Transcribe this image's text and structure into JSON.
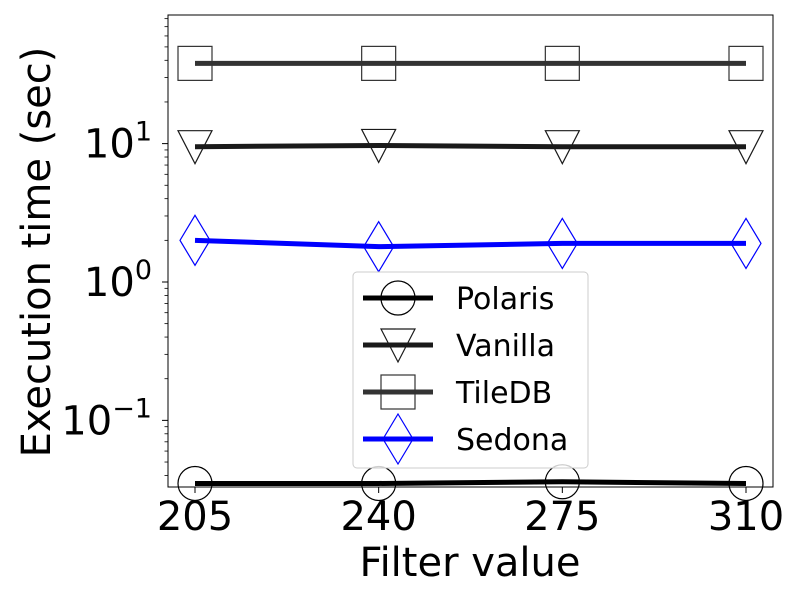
{
  "chart_data": {
    "type": "line",
    "xlabel": "Filter value",
    "ylabel": "Execution time (sec)",
    "x": [
      205,
      240,
      275,
      310
    ],
    "y_scale": "log",
    "ylim": [
      0.033,
      85
    ],
    "y_ticks": [
      {
        "value": 0.1,
        "base": "10",
        "exp": "−1"
      },
      {
        "value": 1,
        "base": "10",
        "exp": "0"
      },
      {
        "value": 10,
        "base": "10",
        "exp": "1"
      }
    ],
    "grid": false,
    "legend_position": "bottom-center",
    "series": [
      {
        "name": "Polaris",
        "values": [
          0.035,
          0.035,
          0.036,
          0.035
        ],
        "color": "#000000",
        "marker": "circle"
      },
      {
        "name": "Vanilla",
        "values": [
          9.5,
          9.7,
          9.5,
          9.5
        ],
        "color": "#1a1a1a",
        "marker": "triangle-down"
      },
      {
        "name": "TileDB",
        "values": [
          38,
          38,
          38,
          38
        ],
        "color": "#333333",
        "marker": "square"
      },
      {
        "name": "Sedona",
        "values": [
          2.0,
          1.8,
          1.9,
          1.9
        ],
        "color": "#0000ff",
        "marker": "diamond"
      }
    ]
  }
}
